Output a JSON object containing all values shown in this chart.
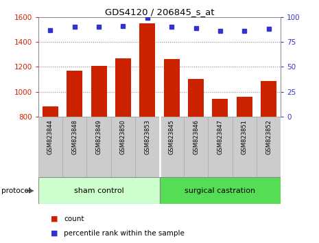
{
  "title": "GDS4120 / 206845_s_at",
  "categories": [
    "GSM823844",
    "GSM823848",
    "GSM823849",
    "GSM823850",
    "GSM823853",
    "GSM823845",
    "GSM823846",
    "GSM823847",
    "GSM823851",
    "GSM823852"
  ],
  "bar_values": [
    880,
    1170,
    1205,
    1270,
    1550,
    1260,
    1105,
    945,
    960,
    1085
  ],
  "percentile_values": [
    87,
    90,
    90,
    91,
    99,
    90,
    89,
    86,
    86,
    88
  ],
  "ylim_left": [
    800,
    1600
  ],
  "ylim_right": [
    0,
    100
  ],
  "yticks_left": [
    800,
    1000,
    1200,
    1400,
    1600
  ],
  "yticks_right": [
    0,
    25,
    50,
    75,
    100
  ],
  "bar_color": "#cc2200",
  "dot_color": "#3333cc",
  "group1_label": "sham control",
  "group2_label": "surgical castration",
  "group1_count": 5,
  "group2_count": 5,
  "protocol_label": "protocol",
  "legend_count_label": "count",
  "legend_percentile_label": "percentile rank within the sample",
  "group1_bg": "#ccffcc",
  "group2_bg": "#55dd55",
  "tick_bg": "#cccccc",
  "left_axis_color": "#cc2200",
  "right_axis_color": "#3333cc",
  "bar_width": 0.65,
  "grid_color": "#888888",
  "spine_color": "#888888"
}
